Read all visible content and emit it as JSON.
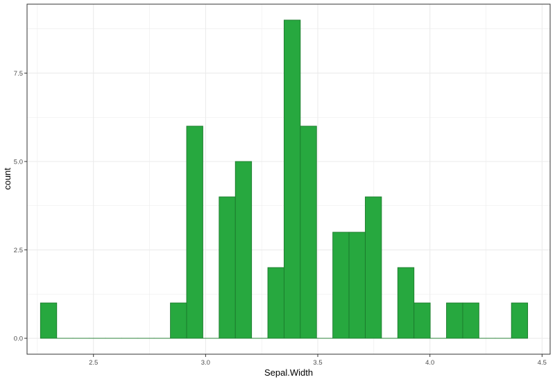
{
  "chart_data": {
    "type": "bar",
    "subtype": "histogram",
    "title": "",
    "xlabel": "Sepal.Width",
    "ylabel": "count",
    "xlim": [
      2.204,
      4.536
    ],
    "ylim": [
      -0.45,
      9.45
    ],
    "x_ticks": [
      "2.5",
      "3.0",
      "3.5",
      "4.0",
      "4.5"
    ],
    "y_ticks": [
      "0.0",
      "2.5",
      "5.0",
      "7.5"
    ],
    "bin_width": 0.0724,
    "bin_start": 2.2638,
    "bins": 30,
    "values": [
      1,
      0,
      0,
      0,
      0,
      0,
      0,
      0,
      1,
      6,
      0,
      4,
      5,
      0,
      2,
      9,
      6,
      0,
      3,
      3,
      4,
      0,
      2,
      1,
      0,
      1,
      1,
      0,
      0,
      1
    ],
    "grid": true,
    "fill_color": "#27a83f",
    "border_color": "#1b7a2c",
    "panel_border_color": "#333333",
    "grid_color": "#ebebeb"
  }
}
